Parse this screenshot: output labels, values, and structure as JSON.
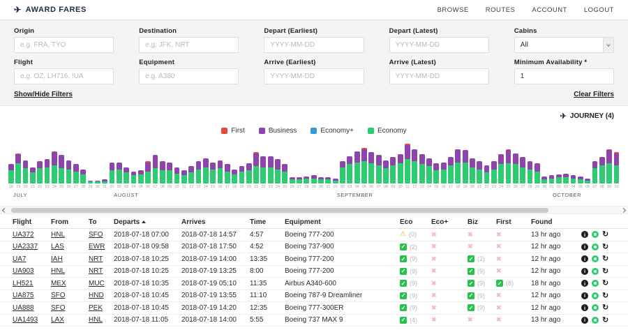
{
  "header": {
    "brand": "AWARD FARES",
    "nav": [
      "BROWSE",
      "ROUTES",
      "ACCOUNT",
      "LOGOUT"
    ]
  },
  "icons": {
    "plane": "✈",
    "check": "✓",
    "x": "✖",
    "warn": "⚠",
    "info": "i",
    "refresh": "↻"
  },
  "colors": {
    "check_bg": "#27c24c",
    "warn": "#f5a623",
    "x": "#f3bdbd"
  },
  "filters": {
    "origin": {
      "label": "Origin",
      "placeholder": "e.g. FRA, TYO"
    },
    "destination": {
      "label": "Destination",
      "placeholder": "e.g. JFK, NRT"
    },
    "depart_earliest": {
      "label": "Depart (Earliest)",
      "placeholder": "YYYY-MM-DD"
    },
    "depart_latest": {
      "label": "Depart (Latest)",
      "placeholder": "YYYY-MM-DD"
    },
    "cabins": {
      "label": "Cabins",
      "value": "All"
    },
    "flight": {
      "label": "Flight",
      "placeholder": "e.g. OZ, LH716, !UA"
    },
    "equipment": {
      "label": "Equipment",
      "placeholder": "e.g. A380"
    },
    "arrive_earliest": {
      "label": "Arrive (Earliest)",
      "placeholder": "YYYY-MM-DD"
    },
    "arrive_latest": {
      "label": "Arrive (Latest)",
      "placeholder": "YYYY-MM-DD"
    },
    "min_availability": {
      "label": "Minimum Availability *",
      "value": "1"
    },
    "show_hide": "Show/Hide Filters",
    "clear": "Clear Filters"
  },
  "journey": {
    "label": "JOURNEY (4)"
  },
  "chart_data": {
    "type": "bar",
    "stacked": true,
    "title": "",
    "ylim": [
      0,
      40
    ],
    "grid": false,
    "legend_position": "top-center",
    "legend": [
      {
        "label": "First",
        "color": "#e5493d"
      },
      {
        "label": "Business",
        "color": "#8e44ad"
      },
      {
        "label": "Economy+",
        "color": "#3498db"
      },
      {
        "label": "Economy",
        "color": "#2ecc71"
      }
    ],
    "months": [
      {
        "name": "JULY",
        "days": [
          "18",
          "19",
          "20",
          "21",
          "22",
          "23",
          "24",
          "25",
          "26",
          "27",
          "28",
          "29",
          "30",
          "31"
        ]
      },
      {
        "name": "AUGUST",
        "days": [
          "01",
          "02",
          "03",
          "04",
          "05",
          "06",
          "07",
          "08",
          "09",
          "10",
          "11",
          "12",
          "13",
          "14",
          "15",
          "16",
          "17",
          "18",
          "19",
          "20",
          "21",
          "22",
          "23",
          "24",
          "25",
          "26",
          "27",
          "28",
          "29",
          "30",
          "31"
        ]
      },
      {
        "name": "SEPTEMBER",
        "days": [
          "01",
          "02",
          "03",
          "04",
          "05",
          "06",
          "07",
          "08",
          "09",
          "10",
          "11",
          "12",
          "13",
          "14",
          "15",
          "16",
          "17",
          "18",
          "19",
          "20",
          "21",
          "22",
          "23",
          "24",
          "25",
          "26",
          "27",
          "28",
          "29",
          "30"
        ]
      },
      {
        "name": "OCTOBER",
        "days": [
          "01",
          "02",
          "03",
          "04",
          "05",
          "06",
          "07",
          "08",
          "09",
          "10"
        ]
      }
    ],
    "series": [
      {
        "name": "Economy",
        "color": "#2ecc71",
        "values": [
          13,
          20,
          15,
          11,
          15,
          16,
          18,
          15,
          14,
          12,
          9,
          2,
          2,
          2,
          13,
          14,
          11,
          8,
          9,
          12,
          15,
          13,
          13,
          10,
          8,
          11,
          14,
          16,
          14,
          15,
          12,
          9,
          12,
          13,
          17,
          16,
          16,
          14,
          12,
          4,
          4,
          5,
          5,
          4,
          4,
          3,
          16,
          19,
          21,
          22,
          20,
          18,
          15,
          18,
          20,
          24,
          22,
          19,
          17,
          13,
          14,
          18,
          21,
          21,
          16,
          14,
          11,
          14,
          19,
          20,
          19,
          16,
          14,
          12,
          4,
          5,
          6,
          6,
          5,
          4,
          3,
          15,
          18,
          20,
          18
        ]
      },
      {
        "name": "Economy+",
        "color": "#3498db",
        "values": [
          0,
          0,
          0,
          0,
          0,
          0,
          0,
          0,
          0,
          0,
          0,
          0,
          0,
          0,
          0,
          0,
          0,
          0,
          0,
          0,
          0,
          0,
          0,
          0,
          0,
          0,
          0,
          0,
          0,
          0,
          0,
          0,
          0,
          0,
          0,
          0,
          0,
          0,
          0,
          0,
          0,
          0,
          0,
          0,
          0,
          0,
          0,
          0,
          0,
          0,
          0,
          0,
          0,
          0,
          0,
          0,
          0,
          0,
          0,
          0,
          0,
          0,
          0,
          0,
          0,
          0,
          0,
          0,
          0,
          0,
          0,
          0,
          0,
          0,
          0,
          0,
          0,
          0,
          0,
          0,
          0,
          0,
          0,
          0,
          0
        ]
      },
      {
        "name": "Business",
        "color": "#8e44ad",
        "values": [
          6,
          9,
          8,
          5,
          7,
          8,
          13,
          13,
          9,
          7,
          5,
          1,
          1,
          2,
          8,
          7,
          5,
          4,
          4,
          9,
          13,
          9,
          8,
          6,
          5,
          6,
          8,
          9,
          7,
          8,
          7,
          5,
          5,
          7,
          13,
          11,
          11,
          10,
          7,
          2,
          2,
          2,
          3,
          2,
          2,
          2,
          6,
          8,
          11,
          12,
          11,
          10,
          8,
          8,
          9,
          14,
          12,
          10,
          8,
          7,
          7,
          8,
          13,
          12,
          9,
          8,
          7,
          8,
          10,
          13,
          11,
          10,
          8,
          8,
          3,
          3,
          3,
          4,
          3,
          3,
          2,
          7,
          8,
          13,
          12
        ]
      },
      {
        "name": "First",
        "color": "#e5493d",
        "values": [
          0,
          1,
          0,
          0,
          0,
          0,
          1,
          0,
          0,
          0,
          0,
          0,
          0,
          0,
          0,
          0,
          0,
          0,
          0,
          1,
          0,
          0,
          0,
          0,
          0,
          0,
          0,
          0,
          0,
          0,
          0,
          0,
          0,
          0,
          1,
          0,
          0,
          0,
          0,
          0,
          0,
          0,
          0,
          0,
          0,
          0,
          0,
          0,
          0,
          1,
          0,
          0,
          0,
          0,
          0,
          1,
          0,
          0,
          0,
          0,
          0,
          0,
          0,
          0,
          0,
          0,
          0,
          0,
          0,
          1,
          0,
          0,
          0,
          0,
          0,
          0,
          0,
          0,
          0,
          0,
          0,
          0,
          0,
          1,
          1
        ]
      }
    ]
  },
  "table": {
    "columns": [
      "Flight",
      "From",
      "To",
      "Departs",
      "Arrives",
      "Time",
      "Equipment",
      "Eco",
      "Eco+",
      "Biz",
      "First",
      "Found"
    ],
    "sort_column": "Departs",
    "sort_direction": "asc",
    "actions": [
      "info",
      "watch",
      "refresh"
    ],
    "rows": [
      {
        "flight": "UA372",
        "from": "HNL",
        "to": "SFO",
        "departs": "2018-07-18 07:00",
        "arrives": "2018-07-18 14:57",
        "time": "4:57",
        "equipment": "Boeing 777-200",
        "eco": {
          "icon": "warn",
          "count": "(0)"
        },
        "eco_plus": {
          "icon": "x"
        },
        "biz": {
          "icon": "x"
        },
        "first": {
          "icon": "x"
        },
        "found": "13 hr ago"
      },
      {
        "flight": "UA2337",
        "from": "LAS",
        "to": "EWR",
        "departs": "2018-07-18 09:58",
        "arrives": "2018-07-18 17:50",
        "time": "4:52",
        "equipment": "Boeing 737-900",
        "eco": {
          "icon": "check",
          "count": "(2)"
        },
        "eco_plus": {
          "icon": "x"
        },
        "biz": {
          "icon": "x"
        },
        "first": {
          "icon": "x"
        },
        "found": "12 hr ago"
      },
      {
        "flight": "UA7",
        "from": "IAH",
        "to": "NRT",
        "departs": "2018-07-18 10:25",
        "arrives": "2018-07-19 14:00",
        "time": "13:35",
        "equipment": "Boeing 777-200",
        "eco": {
          "icon": "check",
          "count": "(9)"
        },
        "eco_plus": {
          "icon": "x"
        },
        "biz": {
          "icon": "check",
          "count": "(2)"
        },
        "first": {
          "icon": "x"
        },
        "found": "12 hr ago"
      },
      {
        "flight": "UA903",
        "from": "HNL",
        "to": "NRT",
        "departs": "2018-07-18 10:25",
        "arrives": "2018-07-19 13:25",
        "time": "8:00",
        "equipment": "Boeing 777-200",
        "eco": {
          "icon": "check",
          "count": "(9)"
        },
        "eco_plus": {
          "icon": "x"
        },
        "biz": {
          "icon": "check",
          "count": "(9)"
        },
        "first": {
          "icon": "x"
        },
        "found": "12 hr ago"
      },
      {
        "flight": "LH521",
        "from": "MEX",
        "to": "MUC",
        "departs": "2018-07-18 10:35",
        "arrives": "2018-07-19 05:10",
        "time": "11:35",
        "equipment": "Airbus A340-600",
        "eco": {
          "icon": "check",
          "count": "(9)"
        },
        "eco_plus": {
          "icon": "x"
        },
        "biz": {
          "icon": "check",
          "count": "(9)"
        },
        "first": {
          "icon": "check",
          "count": "(8)"
        },
        "found": "18 hr ago"
      },
      {
        "flight": "UA875",
        "from": "SFO",
        "to": "HND",
        "departs": "2018-07-18 10:45",
        "arrives": "2018-07-19 13:55",
        "time": "11:10",
        "equipment": "Boeing 787-9 Dreamliner",
        "eco": {
          "icon": "check",
          "count": "(9)"
        },
        "eco_plus": {
          "icon": "x"
        },
        "biz": {
          "icon": "check",
          "count": "(9)"
        },
        "first": {
          "icon": "x"
        },
        "found": "12 hr ago"
      },
      {
        "flight": "UA888",
        "from": "SFO",
        "to": "PEK",
        "departs": "2018-07-18 10:45",
        "arrives": "2018-07-19 14:20",
        "time": "12:35",
        "equipment": "Boeing 777-300ER",
        "eco": {
          "icon": "check",
          "count": "(9)"
        },
        "eco_plus": {
          "icon": "x"
        },
        "biz": {
          "icon": "check",
          "count": "(9)"
        },
        "first": {
          "icon": "x"
        },
        "found": "12 hr ago"
      },
      {
        "flight": "UA1493",
        "from": "LAX",
        "to": "HNL",
        "departs": "2018-07-18 11:05",
        "arrives": "2018-07-18 14:00",
        "time": "5:55",
        "equipment": "Boeing 737 MAX 9",
        "eco": {
          "icon": "check",
          "count": "(4)"
        },
        "eco_plus": {
          "icon": "x"
        },
        "biz": {
          "icon": "x"
        },
        "first": {
          "icon": "x"
        },
        "found": "13 hr ago"
      }
    ]
  }
}
